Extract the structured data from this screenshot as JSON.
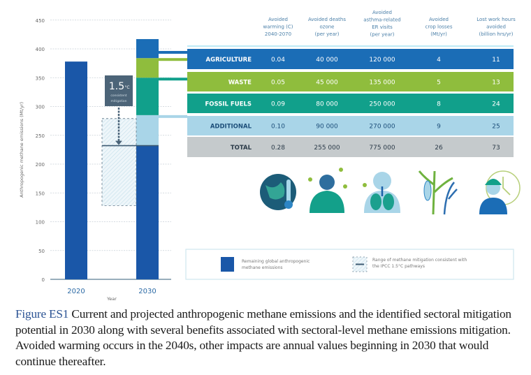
{
  "chart_data": {
    "type": "bar",
    "ylabel": "Anthropogenic methane emissions (Mt/yr)",
    "xlabel": "Year",
    "ylim": [
      0,
      450
    ],
    "yticks": [
      0,
      50,
      100,
      150,
      200,
      250,
      300,
      350,
      400,
      450
    ],
    "grid": true,
    "categories": [
      "2020",
      "2030"
    ],
    "bar_2020": {
      "value": 378,
      "color": "#1a57a8"
    },
    "bar_2030": {
      "remaining": {
        "value": 232,
        "color": "#1a57a8"
      },
      "segments": [
        {
          "name": "ADDITIONAL",
          "from": 232,
          "to": 285,
          "color": "#a9d5e8"
        },
        {
          "name": "FOSSIL FUELS",
          "from": 285,
          "to": 350,
          "color": "#11a08b"
        },
        {
          "name": "WASTE",
          "from": 350,
          "to": 384,
          "color": "#8fbd3d"
        },
        {
          "name": "AGRICULTURE",
          "from": 384,
          "to": 417,
          "color": "#1b6db6"
        }
      ]
    },
    "mitigation_range": {
      "low": 128,
      "high": 279,
      "target": 232
    },
    "annotation": {
      "big": "1.5",
      "unit": "°C",
      "line1": "consistent",
      "line2": "mitigation"
    },
    "legend": [
      {
        "label_line1": "Remaining global anthropogenic",
        "label_line2": "methane emissions",
        "swatch": "solid",
        "color": "#1a57a8"
      },
      {
        "label_line1": "Range of methane mitigation consistent with",
        "label_line2": "the IPCC 1.5°C pathways",
        "swatch": "dashed-range"
      }
    ],
    "table": {
      "columns": [
        [
          "Avoided",
          "warming (C)",
          "2040-2070"
        ],
        [
          "Avoided deaths",
          "ozone",
          "(per year)"
        ],
        [
          "Avoided",
          "asthma-related",
          "ER visits",
          "(per year)"
        ],
        [
          "Avoided",
          "crop losses",
          "(Mt/yr)"
        ],
        [
          "Lost work hours",
          "avoided",
          "(billion hrs/yr)"
        ]
      ],
      "rows": [
        {
          "label": "AGRICULTURE",
          "values": [
            "0.04",
            "40 000",
            "120 000",
            "4",
            "11"
          ],
          "color": "#1b6db6",
          "text": "#ffffff"
        },
        {
          "label": "WASTE",
          "values": [
            "0.05",
            "45 000",
            "135 000",
            "5",
            "13"
          ],
          "color": "#8fbd3d",
          "text": "#ffffff"
        },
        {
          "label": "FOSSIL FUELS",
          "values": [
            "0.09",
            "80 000",
            "250 000",
            "8",
            "24"
          ],
          "color": "#11a08b",
          "text": "#ffffff"
        },
        {
          "label": "ADDITIONAL",
          "values": [
            "0.10",
            "90 000",
            "270 000",
            "9",
            "25"
          ],
          "color": "#a9d5e8",
          "text": "#1d4f7a"
        },
        {
          "label": "TOTAL",
          "values": [
            "0.28",
            "255 000",
            "775 000",
            "26",
            "73"
          ],
          "color": "#c5cacc",
          "text": "#2a3a48"
        }
      ]
    },
    "icons": [
      "globe-thermometer-icon",
      "person-coughing-icon",
      "lungs-icon",
      "crops-icon",
      "worker-clock-icon"
    ]
  },
  "caption": {
    "lead": "Figure ES1",
    "text": " Current and projected anthropogenic methane emissions and the identified sectoral mitigation potential in 2030 along with several benefits associated with sectoral-level methane emissions mitigation. Avoided warming occurs in the 2040s, other impacts are annual values beginning in 2030 that would continue thereafter."
  }
}
